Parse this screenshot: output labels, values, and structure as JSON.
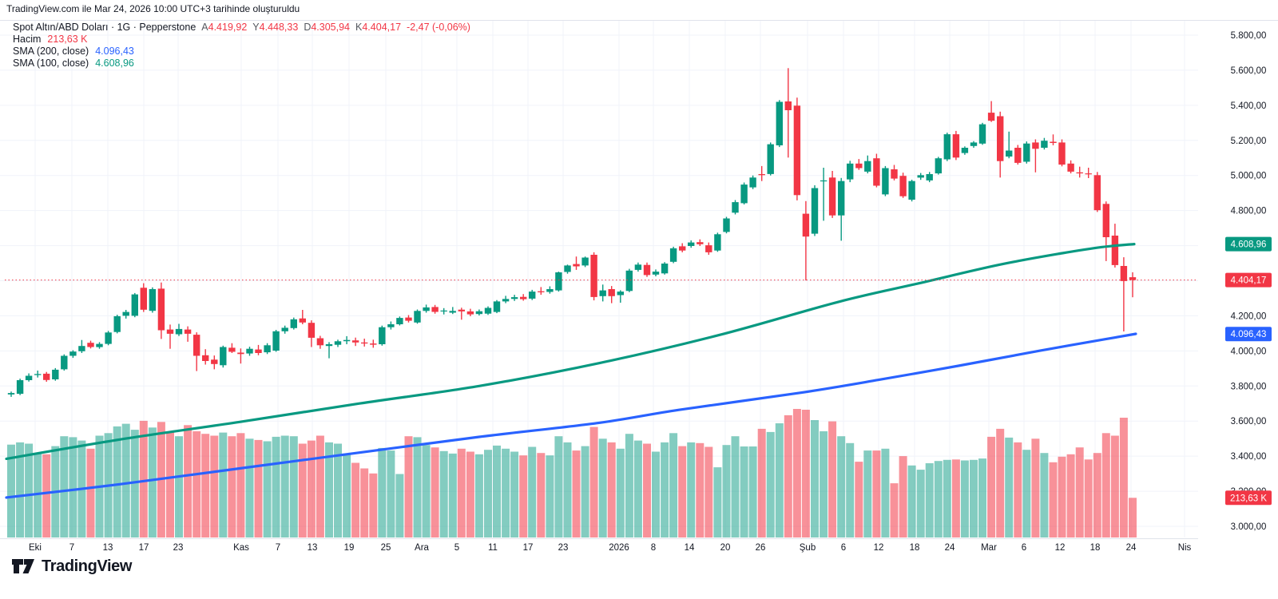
{
  "attribution": "TradingView.com ile Mar 24, 2026 10:00 UTC+3 tarihinde oluşturuldu",
  "watermark": {
    "brand": "TradingView"
  },
  "legend": {
    "symbol_title": "Spot Altın/ABD Doları · 1G · Pepperstone",
    "ohlc": [
      {
        "label": "A",
        "value": "4.419,92"
      },
      {
        "label": "Y",
        "value": "4.448,33"
      },
      {
        "label": "D",
        "value": "4.305,94"
      },
      {
        "label": "K",
        "value": "4.404,17"
      }
    ],
    "change": "-2,47 (-0,06%)",
    "volume_label": "Hacim",
    "volume_value": "213,63 K",
    "sma200_label": "SMA (200, close)",
    "sma200_value": "4.096,43",
    "sma100_label": "SMA (100, close)",
    "sma100_value": "4.608,96"
  },
  "colors": {
    "up": "#089981",
    "down": "#F23645",
    "sma100": "#089981",
    "sma200": "#2962FF",
    "volume_up": "rgba(8,153,129,0.5)",
    "volume_down": "rgba(242,54,69,0.55)",
    "grid": "#F0F3FA",
    "separator": "#E0E3EB",
    "axis_text": "#131722",
    "price_line": "#F23645",
    "label_text": "#FFFFFF"
  },
  "chart_data": {
    "type": "candlestick",
    "title": "Spot Altın/ABD Doları 1G Pepperstone",
    "xlabel": "",
    "ylabel": "",
    "grid": true,
    "ylim": [
      2940,
      5880
    ],
    "last_close": 4404.17,
    "last_volume_k": 213.63,
    "yticks": [
      {
        "label": "5.800,00",
        "price": 5800
      },
      {
        "label": "5.600,00",
        "price": 5600
      },
      {
        "label": "5.400,00",
        "price": 5400
      },
      {
        "label": "5.200,00",
        "price": 5200
      },
      {
        "label": "5.000,00",
        "price": 5000
      },
      {
        "label": "4.800,00",
        "price": 4800
      },
      {
        "label": "4.600,00",
        "price": 4600
      },
      {
        "label": "4.400,00",
        "price": 4400
      },
      {
        "label": "4.200,00",
        "price": 4200
      },
      {
        "label": "4.000,00",
        "price": 4000
      },
      {
        "label": "3.800,00",
        "price": 3800
      },
      {
        "label": "3.600,00",
        "price": 3600
      },
      {
        "label": "3.400,00",
        "price": 3400
      },
      {
        "label": "3.200,00",
        "price": 3200
      },
      {
        "label": "3.000,00",
        "price": 3000
      }
    ],
    "xticks": [
      {
        "label": "Eki",
        "x": 44,
        "major": true
      },
      {
        "label": "7",
        "x": 90,
        "major": false
      },
      {
        "label": "13",
        "x": 135,
        "major": false
      },
      {
        "label": "17",
        "x": 180,
        "major": false
      },
      {
        "label": "23",
        "x": 223,
        "major": false
      },
      {
        "label": "Kas",
        "x": 302,
        "major": true
      },
      {
        "label": "7",
        "x": 348,
        "major": false
      },
      {
        "label": "13",
        "x": 391,
        "major": false
      },
      {
        "label": "19",
        "x": 437,
        "major": false
      },
      {
        "label": "25",
        "x": 483,
        "major": false
      },
      {
        "label": "Ara",
        "x": 528,
        "major": true
      },
      {
        "label": "5",
        "x": 572,
        "major": false
      },
      {
        "label": "11",
        "x": 617,
        "major": false
      },
      {
        "label": "17",
        "x": 661,
        "major": false
      },
      {
        "label": "23",
        "x": 705,
        "major": false
      },
      {
        "label": "2026",
        "x": 775,
        "major": true
      },
      {
        "label": "8",
        "x": 818,
        "major": false
      },
      {
        "label": "14",
        "x": 863,
        "major": false
      },
      {
        "label": "20",
        "x": 908,
        "major": false
      },
      {
        "label": "26",
        "x": 952,
        "major": false
      },
      {
        "label": "Şub",
        "x": 1011,
        "major": true
      },
      {
        "label": "6",
        "x": 1056,
        "major": false
      },
      {
        "label": "12",
        "x": 1100,
        "major": false
      },
      {
        "label": "18",
        "x": 1145,
        "major": false
      },
      {
        "label": "24",
        "x": 1189,
        "major": false
      },
      {
        "label": "Mar",
        "x": 1238,
        "major": true
      },
      {
        "label": "6",
        "x": 1282,
        "major": false
      },
      {
        "label": "12",
        "x": 1327,
        "major": false
      },
      {
        "label": "18",
        "x": 1371,
        "major": false
      },
      {
        "label": "24",
        "x": 1416,
        "major": false
      },
      {
        "label": "Nis",
        "x": 1483,
        "major": true
      }
    ],
    "axis_price_labels": [
      {
        "text": "4.608,96",
        "price": 4608.96,
        "color": "#089981"
      },
      {
        "text": "4.404,17",
        "price": 4404.17,
        "color": "#F23645"
      },
      {
        "text": "4.096,43",
        "price": 4096.43,
        "color": "#2962FF"
      }
    ],
    "axis_volume_label": {
      "text": "213,63 K",
      "volume_k": 213.63,
      "color": "#F23645"
    },
    "sma100_points": [
      [
        8,
        3385
      ],
      [
        150,
        3495
      ],
      [
        300,
        3595
      ],
      [
        450,
        3700
      ],
      [
        600,
        3800
      ],
      [
        750,
        3930
      ],
      [
        900,
        4090
      ],
      [
        1050,
        4280
      ],
      [
        1150,
        4385
      ],
      [
        1250,
        4490
      ],
      [
        1330,
        4557
      ],
      [
        1380,
        4592
      ],
      [
        1420,
        4609
      ]
    ],
    "sma200_points": [
      [
        8,
        3164
      ],
      [
        150,
        3240
      ],
      [
        300,
        3330
      ],
      [
        450,
        3420
      ],
      [
        600,
        3510
      ],
      [
        750,
        3590
      ],
      [
        850,
        3664
      ],
      [
        1000,
        3760
      ],
      [
        1100,
        3835
      ],
      [
        1200,
        3915
      ],
      [
        1300,
        4000
      ],
      [
        1360,
        4048
      ],
      [
        1422,
        4097
      ]
    ],
    "candles": [
      [
        3752,
        3768,
        3738,
        3760,
        500
      ],
      [
        3755,
        3842,
        3748,
        3833,
        512
      ],
      [
        3833,
        3872,
        3825,
        3858,
        505
      ],
      [
        3862,
        3888,
        3848,
        3868,
        455
      ],
      [
        3870,
        3880,
        3824,
        3834,
        448
      ],
      [
        3838,
        3902,
        3830,
        3893,
        492
      ],
      [
        3895,
        3980,
        3888,
        3972,
        545
      ],
      [
        3972,
        4004,
        3960,
        3996,
        540
      ],
      [
        3998,
        4062,
        3988,
        4028,
        522
      ],
      [
        4046,
        4058,
        4014,
        4022,
        478
      ],
      [
        4022,
        4050,
        4012,
        4040,
        548
      ],
      [
        4040,
        4114,
        4032,
        4105,
        562
      ],
      [
        4108,
        4206,
        4100,
        4198,
        598
      ],
      [
        4200,
        4234,
        4184,
        4222,
        612
      ],
      [
        4200,
        4330,
        4192,
        4322,
        580
      ],
      [
        4360,
        4386,
        4222,
        4235,
        628
      ],
      [
        4228,
        4362,
        4218,
        4352,
        592
      ],
      [
        4355,
        4390,
        4068,
        4118,
        622
      ],
      [
        4122,
        4150,
        4012,
        4098,
        568
      ],
      [
        4095,
        4154,
        4085,
        4125,
        545
      ],
      [
        4122,
        4140,
        4052,
        4098,
        605
      ],
      [
        4092,
        4106,
        3885,
        3972,
        572
      ],
      [
        3975,
        4010,
        3922,
        3942,
        558
      ],
      [
        3950,
        3974,
        3895,
        3925,
        548
      ],
      [
        3918,
        4030,
        3905,
        4022,
        565
      ],
      [
        4018,
        4044,
        3988,
        3995,
        545
      ],
      [
        3990,
        4014,
        3928,
        3982,
        562
      ],
      [
        3985,
        4024,
        3972,
        4012,
        532
      ],
      [
        4008,
        4034,
        3975,
        3988,
        525
      ],
      [
        3992,
        4044,
        3982,
        4032,
        518
      ],
      [
        4002,
        4120,
        3995,
        4112,
        542
      ],
      [
        4112,
        4144,
        4098,
        4132,
        548
      ],
      [
        4130,
        4190,
        4122,
        4180,
        545
      ],
      [
        4185,
        4234,
        4152,
        4162,
        505
      ],
      [
        4160,
        4174,
        4022,
        4075,
        522
      ],
      [
        4072,
        4086,
        4012,
        4032,
        548
      ],
      [
        4028,
        4050,
        3958,
        4038,
        512
      ],
      [
        4035,
        4064,
        4022,
        4055,
        505
      ],
      [
        4055,
        4084,
        4038,
        4062,
        452
      ],
      [
        4060,
        4076,
        4028,
        4048,
        402
      ],
      [
        4048,
        4070,
        4025,
        4042,
        372
      ],
      [
        4042,
        4064,
        4018,
        4035,
        345
      ],
      [
        4038,
        4144,
        4030,
        4135,
        482
      ],
      [
        4135,
        4168,
        4122,
        4152,
        468
      ],
      [
        4152,
        4196,
        4145,
        4188,
        342
      ],
      [
        4190,
        4204,
        4162,
        4172,
        545
      ],
      [
        4162,
        4236,
        4155,
        4228,
        540
      ],
      [
        4228,
        4264,
        4218,
        4248,
        498
      ],
      [
        4250,
        4262,
        4212,
        4222,
        485
      ],
      [
        4225,
        4244,
        4208,
        4230,
        465
      ],
      [
        4218,
        4250,
        4210,
        4228,
        452
      ],
      [
        4235,
        4246,
        4178,
        4225,
        478
      ],
      [
        4225,
        4240,
        4198,
        4208,
        462
      ],
      [
        4210,
        4236,
        4202,
        4226,
        448
      ],
      [
        4212,
        4254,
        4205,
        4245,
        472
      ],
      [
        4222,
        4290,
        4215,
        4282,
        495
      ],
      [
        4282,
        4314,
        4272,
        4296,
        478
      ],
      [
        4296,
        4320,
        4285,
        4306,
        462
      ],
      [
        4308,
        4324,
        4286,
        4295,
        442
      ],
      [
        4298,
        4348,
        4290,
        4338,
        488
      ],
      [
        4340,
        4364,
        4320,
        4334,
        455
      ],
      [
        4336,
        4368,
        4326,
        4352,
        442
      ],
      [
        4345,
        4452,
        4338,
        4448,
        545
      ],
      [
        4450,
        4492,
        4440,
        4487,
        512
      ],
      [
        4495,
        4538,
        4462,
        4482,
        468
      ],
      [
        4487,
        4538,
        4478,
        4532,
        492
      ],
      [
        4548,
        4562,
        4288,
        4307,
        595
      ],
      [
        4312,
        4378,
        4282,
        4345,
        532
      ],
      [
        4352,
        4370,
        4272,
        4312,
        512
      ],
      [
        4318,
        4346,
        4275,
        4338,
        478
      ],
      [
        4342,
        4468,
        4335,
        4458,
        558
      ],
      [
        4462,
        4504,
        4452,
        4492,
        522
      ],
      [
        4490,
        4504,
        4422,
        4432,
        505
      ],
      [
        4435,
        4464,
        4425,
        4452,
        462
      ],
      [
        4442,
        4506,
        4435,
        4498,
        512
      ],
      [
        4508,
        4594,
        4500,
        4585,
        562
      ],
      [
        4596,
        4614,
        4562,
        4572,
        492
      ],
      [
        4598,
        4630,
        4588,
        4618,
        512
      ],
      [
        4620,
        4636,
        4598,
        4608,
        508
      ],
      [
        4602,
        4618,
        4548,
        4562,
        488
      ],
      [
        4572,
        4674,
        4565,
        4665,
        378
      ],
      [
        4678,
        4764,
        4670,
        4755,
        498
      ],
      [
        4788,
        4860,
        4778,
        4848,
        545
      ],
      [
        4842,
        4960,
        4835,
        4948,
        490
      ],
      [
        4932,
        5000,
        4922,
        4988,
        490
      ],
      [
        5008,
        5054,
        4968,
        5002,
        585
      ],
      [
        5008,
        5188,
        5000,
        5178,
        568
      ],
      [
        5172,
        5430,
        5162,
        5420,
        615
      ],
      [
        5422,
        5612,
        5102,
        5372,
        658
      ],
      [
        5398,
        5444,
        4858,
        4888,
        692
      ],
      [
        4782,
        4854,
        4402,
        4652,
        688
      ],
      [
        4668,
        4944,
        4655,
        4928,
        632
      ],
      [
        4968,
        5044,
        4742,
        4972,
        572
      ],
      [
        4988,
        5026,
        4758,
        4772,
        625
      ],
      [
        4772,
        4986,
        4628,
        4968,
        545
      ],
      [
        4978,
        5084,
        4962,
        5068,
        508
      ],
      [
        5068,
        5094,
        5032,
        5042,
        408
      ],
      [
        5022,
        5114,
        5012,
        5082,
        468
      ],
      [
        5098,
        5124,
        4932,
        4942,
        468
      ],
      [
        4892,
        5054,
        4882,
        5042,
        478
      ],
      [
        5035,
        5060,
        4972,
        4982,
        292
      ],
      [
        4998,
        5016,
        4872,
        4882,
        438
      ],
      [
        4862,
        4976,
        4852,
        4968,
        388
      ],
      [
        4988,
        5014,
        4975,
        5002,
        365
      ],
      [
        4972,
        5020,
        4962,
        5008,
        400
      ],
      [
        5012,
        5106,
        5005,
        5098,
        412
      ],
      [
        5092,
        5244,
        5082,
        5235,
        418
      ],
      [
        5235,
        5254,
        5088,
        5102,
        420
      ],
      [
        5128,
        5166,
        5118,
        5158,
        415
      ],
      [
        5168,
        5196,
        5158,
        5188,
        418
      ],
      [
        5182,
        5300,
        5175,
        5292,
        425
      ],
      [
        5358,
        5424,
        5305,
        5312,
        542
      ],
      [
        5338,
        5364,
        4988,
        5082,
        585
      ],
      [
        5108,
        5250,
        5098,
        5142,
        538
      ],
      [
        5158,
        5174,
        5062,
        5072,
        512
      ],
      [
        5078,
        5194,
        5068,
        5182,
        472
      ],
      [
        5188,
        5206,
        5018,
        5152,
        532
      ],
      [
        5158,
        5214,
        5148,
        5198,
        455
      ],
      [
        5192,
        5234,
        5172,
        5185,
        405
      ],
      [
        5188,
        5206,
        5052,
        5062,
        435
      ],
      [
        5068,
        5086,
        5012,
        5022,
        448
      ],
      [
        5018,
        5050,
        4988,
        5012,
        485
      ],
      [
        5012,
        5044,
        4985,
        5008,
        420
      ],
      [
        5002,
        5020,
        4792,
        4802,
        455
      ],
      [
        4838,
        4852,
        4512,
        4648,
        562
      ],
      [
        4657,
        4725,
        4475,
        4489,
        548
      ],
      [
        4484,
        4534,
        4111,
        4398,
        645
      ],
      [
        4419.92,
        4448.33,
        4305.94,
        4404.17,
        213.63
      ]
    ]
  }
}
